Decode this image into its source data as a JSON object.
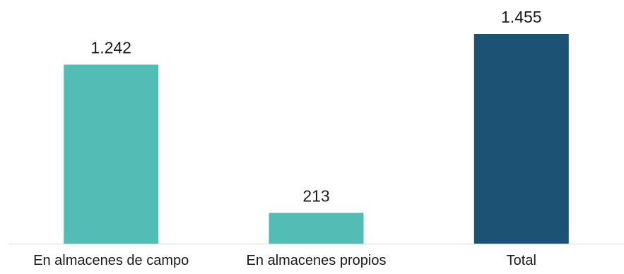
{
  "chart_data": {
    "type": "bar",
    "categories": [
      "En almacenes de campo",
      "En almacenes propios",
      "Total"
    ],
    "values": [
      1242,
      213,
      1455
    ],
    "data_labels": [
      "1.242",
      "213",
      "1.455"
    ],
    "colors": [
      "#52bcb5",
      "#52bcb5",
      "#1c5273"
    ],
    "ylim": [
      0,
      1455
    ],
    "grid": false,
    "legend": "none",
    "title": "",
    "xlabel": "",
    "ylabel": ""
  },
  "colors": {
    "axis_line": "#d9d9d9",
    "text": "#1a1a1a"
  }
}
